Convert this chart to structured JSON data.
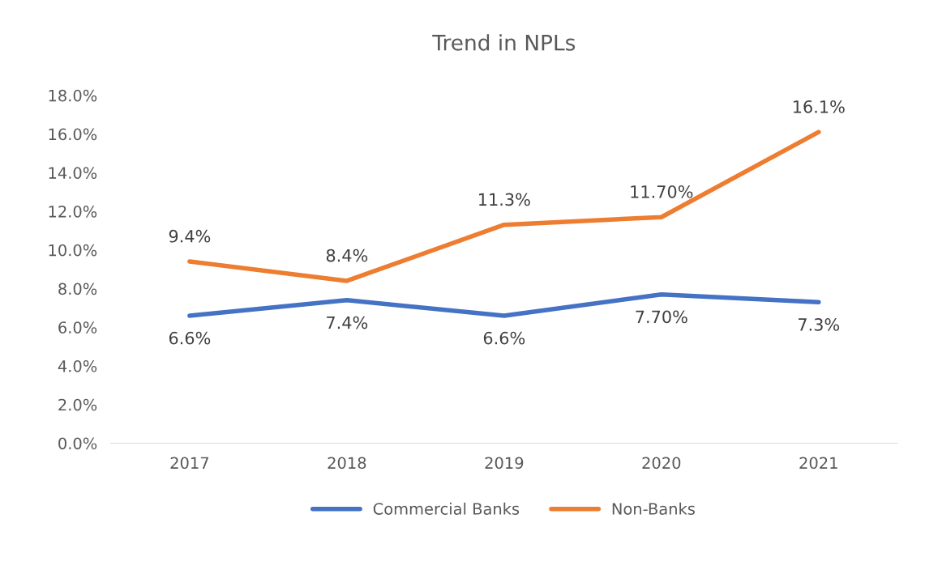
{
  "chart_data": {
    "type": "line",
    "title": "Trend in NPLs",
    "categories": [
      "2017",
      "2018",
      "2019",
      "2020",
      "2021"
    ],
    "series": [
      {
        "name": "Commercial Banks",
        "color": "#4472c4",
        "values": [
          6.6,
          7.4,
          6.6,
          7.7,
          7.3
        ],
        "value_labels": [
          "6.6%",
          "7.4%",
          "6.6%",
          "7.70%",
          "7.3%"
        ]
      },
      {
        "name": "Non-Banks",
        "color": "#ed7d31",
        "values": [
          9.4,
          8.4,
          11.3,
          11.7,
          16.1
        ],
        "value_labels": [
          "9.4%",
          "8.4%",
          "11.3%",
          "11.70%",
          "16.1%"
        ]
      }
    ],
    "ylim": [
      0,
      18
    ],
    "yticks": [
      {
        "value": 0,
        "label": "0.0%"
      },
      {
        "value": 2,
        "label": "2.0%"
      },
      {
        "value": 4,
        "label": "4.0%"
      },
      {
        "value": 6,
        "label": "6.0%"
      },
      {
        "value": 8,
        "label": "8.0%"
      },
      {
        "value": 10,
        "label": "10.0%"
      },
      {
        "value": 12,
        "label": "12.0%"
      },
      {
        "value": 14,
        "label": "14.0%"
      },
      {
        "value": 16,
        "label": "16.0%"
      },
      {
        "value": 18,
        "label": "18.0%"
      }
    ],
    "grid": false,
    "legend": "bottom",
    "marker": "none",
    "line_style": "solid"
  }
}
